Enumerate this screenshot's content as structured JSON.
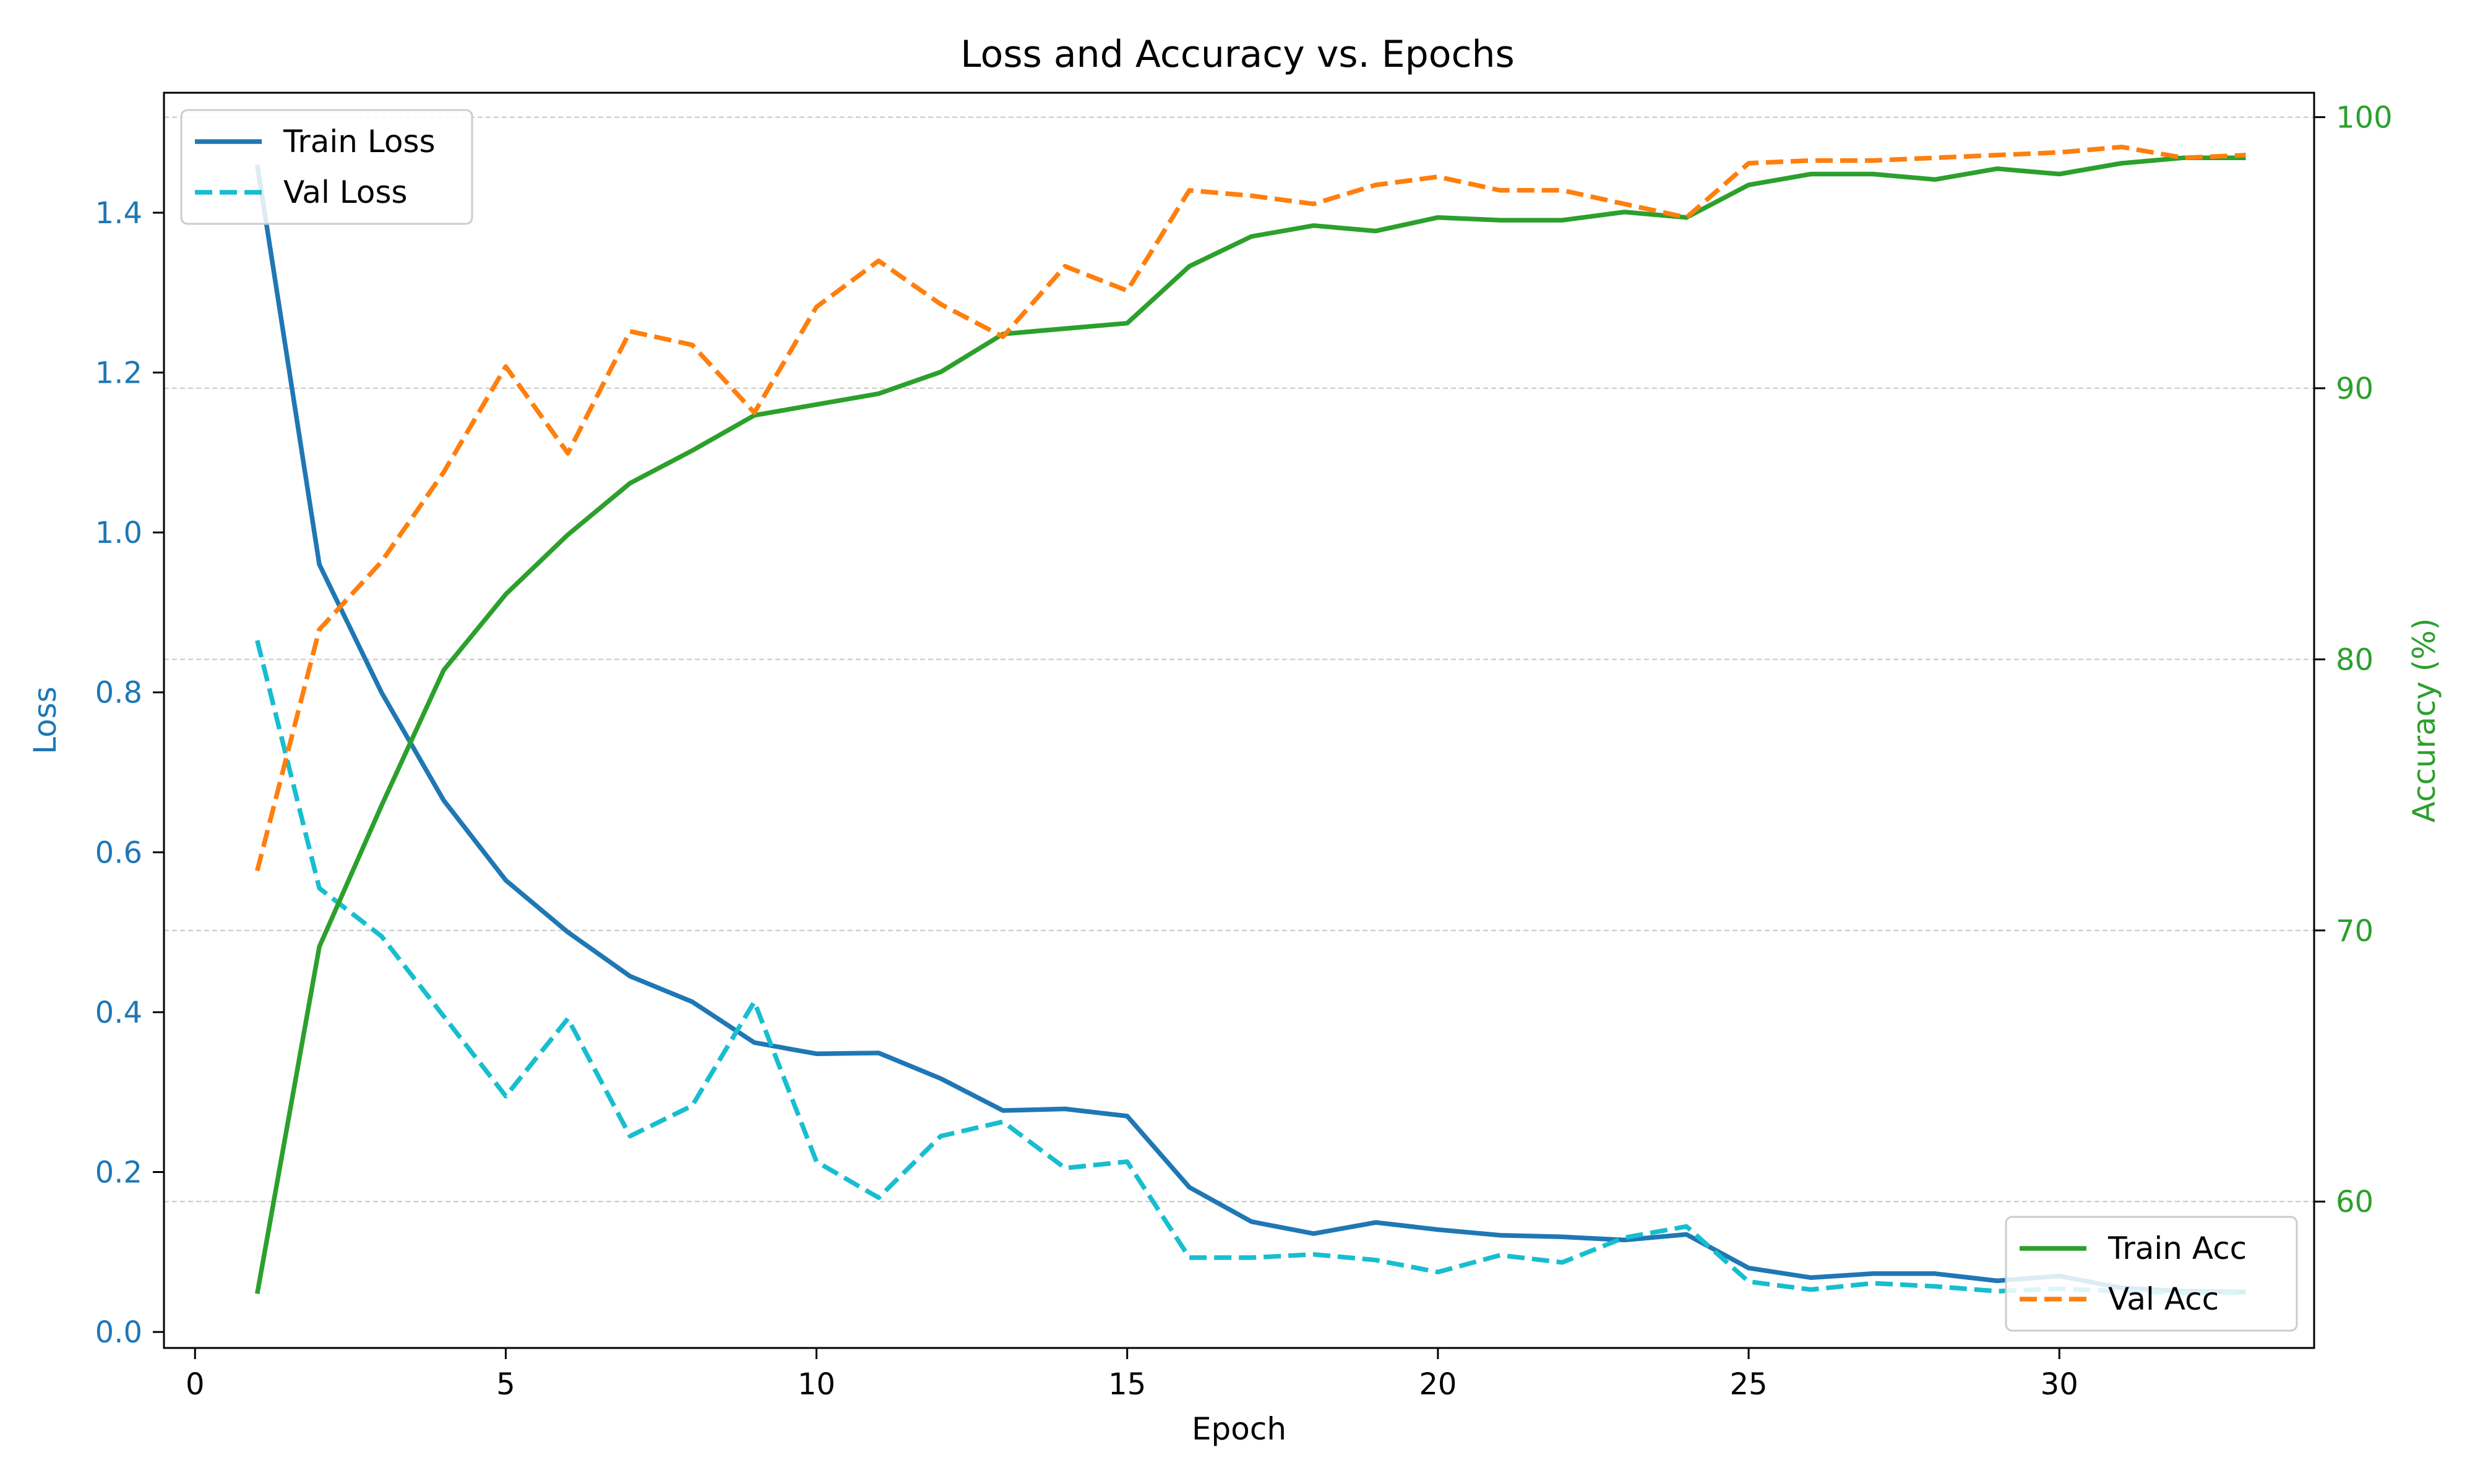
{
  "chart_data": {
    "type": "line",
    "title": "Loss and Accuracy vs. Epochs",
    "xlabel": "Epoch",
    "ylabel_left": "Loss",
    "ylabel_right": "Accuracy (%)",
    "xlim": [
      -0.5,
      34.1
    ],
    "ylim_left": [
      -0.02,
      1.55
    ],
    "ylim_right": [
      54.6,
      100.9
    ],
    "x_ticks": [
      0,
      5,
      10,
      15,
      20,
      25,
      30
    ],
    "y_left_ticks": [
      "0.0",
      "0.2",
      "0.4",
      "0.6",
      "0.8",
      "1.0",
      "1.2",
      "1.4"
    ],
    "y_right_ticks": [
      "60",
      "70",
      "80",
      "90",
      "100"
    ],
    "grid": "horizontal-dashed",
    "colors": {
      "train_loss": "#1f77b4",
      "val_loss": "#17becf",
      "train_acc": "#2ca02c",
      "val_acc": "#ff7f0e",
      "left_axis": "#1f77b4",
      "right_axis": "#2ca02c"
    },
    "x": [
      1,
      2,
      3,
      4,
      5,
      6,
      7,
      8,
      9,
      10,
      11,
      12,
      13,
      14,
      15,
      16,
      17,
      18,
      19,
      20,
      21,
      22,
      23,
      24,
      25,
      26,
      27,
      28,
      29,
      30,
      31,
      32,
      33
    ],
    "series": [
      {
        "name": "Train Loss",
        "axis": "left",
        "style": "solid",
        "color": "#1f77b4",
        "values": [
          1.46,
          0.96,
          0.8,
          0.665,
          0.565,
          0.5,
          0.445,
          0.413,
          0.362,
          0.348,
          0.349,
          0.317,
          0.277,
          0.279,
          0.27,
          0.181,
          0.138,
          0.123,
          0.137,
          0.128,
          0.121,
          0.119,
          0.115,
          0.122,
          0.08,
          0.068,
          0.073,
          0.073,
          0.064,
          0.07,
          0.055,
          0.051,
          0.05
        ]
      },
      {
        "name": "Val Loss",
        "axis": "left",
        "style": "dashed",
        "color": "#17becf",
        "values": [
          0.865,
          0.555,
          0.495,
          0.395,
          0.295,
          0.392,
          0.245,
          0.283,
          0.413,
          0.213,
          0.168,
          0.245,
          0.263,
          0.205,
          0.213,
          0.093,
          0.093,
          0.097,
          0.09,
          0.075,
          0.096,
          0.087,
          0.118,
          0.132,
          0.063,
          0.053,
          0.061,
          0.057,
          0.051,
          0.054,
          0.051,
          0.049,
          0.049
        ]
      },
      {
        "name": "Train Acc",
        "axis": "right",
        "style": "solid",
        "color": "#2ca02c",
        "values": [
          56.6,
          69.4,
          74.6,
          79.6,
          82.4,
          84.6,
          86.5,
          87.7,
          89.0,
          89.4,
          89.8,
          90.6,
          92.0,
          92.2,
          92.4,
          94.5,
          95.6,
          96.0,
          95.8,
          96.3,
          96.2,
          96.2,
          96.5,
          96.3,
          97.5,
          97.9,
          97.9,
          97.7,
          98.1,
          97.9,
          98.3,
          98.5,
          98.5
        ]
      },
      {
        "name": "Val Acc",
        "axis": "right",
        "style": "dashed",
        "color": "#ff7f0e",
        "values": [
          72.2,
          81.1,
          83.6,
          86.9,
          90.8,
          87.6,
          92.1,
          91.6,
          89.1,
          93.0,
          94.7,
          93.1,
          91.9,
          94.5,
          93.6,
          97.3,
          97.1,
          96.8,
          97.5,
          97.8,
          97.3,
          97.3,
          96.8,
          96.3,
          98.3,
          98.4,
          98.4,
          98.5,
          98.6,
          98.7,
          98.9,
          98.5,
          98.6
        ]
      }
    ],
    "legends": [
      {
        "placement": "upper-left",
        "entries": [
          "Train Loss",
          "Val Loss"
        ]
      },
      {
        "placement": "lower-right",
        "entries": [
          "Train Acc",
          "Val Acc"
        ]
      }
    ]
  }
}
